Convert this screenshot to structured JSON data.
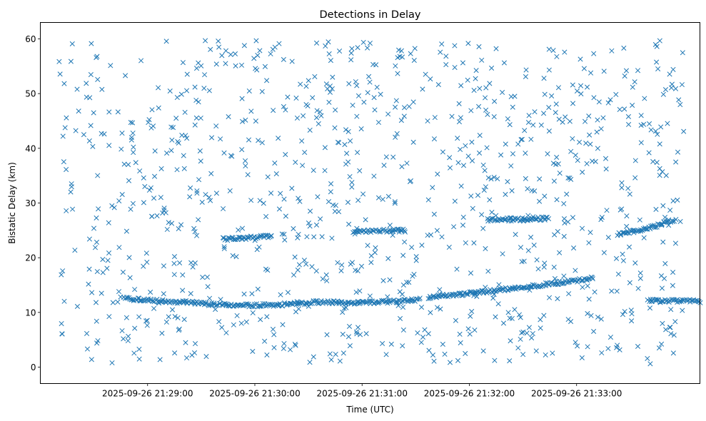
{
  "chart_data": {
    "type": "scatter",
    "title": "Detections in Delay",
    "xlabel": "Time (UTC)",
    "ylabel": "Bistatic Delay (km)",
    "marker": "x",
    "color": "#1f77b4",
    "grid": false,
    "x_unit": "seconds_since_2025-09-26T21:28:00Z",
    "xlim": [
      0,
      369
    ],
    "ylim": [
      -3,
      63
    ],
    "xticks": [
      {
        "value": "2025-09-26 21:29:00",
        "label": "2025-09-26 21:29:00"
      },
      {
        "value": "2025-09-26 21:30:00",
        "label": "2025-09-26 21:30:00"
      },
      {
        "value": "2025-09-26 21:31:00",
        "label": "2025-09-26 21:31:00"
      },
      {
        "value": "2025-09-26 21:32:00",
        "label": "2025-09-26 21:32:00"
      },
      {
        "value": "2025-09-26 21:33:00",
        "label": "2025-09-26 21:33:00"
      }
    ],
    "yticks": [
      0,
      10,
      20,
      30,
      40,
      50,
      60
    ],
    "tracks": [
      {
        "x": [
          47,
          62,
          80,
          100,
          120,
          140,
          155
        ],
        "y": [
          12.5,
          12.2,
          11.9,
          11.4,
          11.3,
          11.5,
          11.9
        ]
      },
      {
        "x": [
          155,
          170,
          185,
          200,
          213
        ],
        "y": [
          11.9,
          11.8,
          11.8,
          12.0,
          12.4
        ]
      },
      {
        "x": [
          217,
          235,
          255,
          275,
          295,
          310
        ],
        "y": [
          12.8,
          13.3,
          14.0,
          14.8,
          15.6,
          16.3
        ]
      },
      {
        "x": [
          323,
          340,
          355
        ],
        "y": [
          24.3,
          25.3,
          27.0
        ]
      },
      {
        "x": [
          175,
          190,
          205
        ],
        "y": [
          24.8,
          24.9,
          25.0
        ]
      },
      {
        "x": [
          102,
          115,
          130
        ],
        "y": [
          23.4,
          23.6,
          24.0
        ]
      },
      {
        "x": [
          250,
          268,
          285
        ],
        "y": [
          27.0,
          27.0,
          27.2
        ]
      },
      {
        "x": [
          340,
          356,
          370
        ],
        "y": [
          12.2,
          12.1,
          12.0
        ]
      }
    ],
    "clutter_count": 1000,
    "seed": 2025
  }
}
